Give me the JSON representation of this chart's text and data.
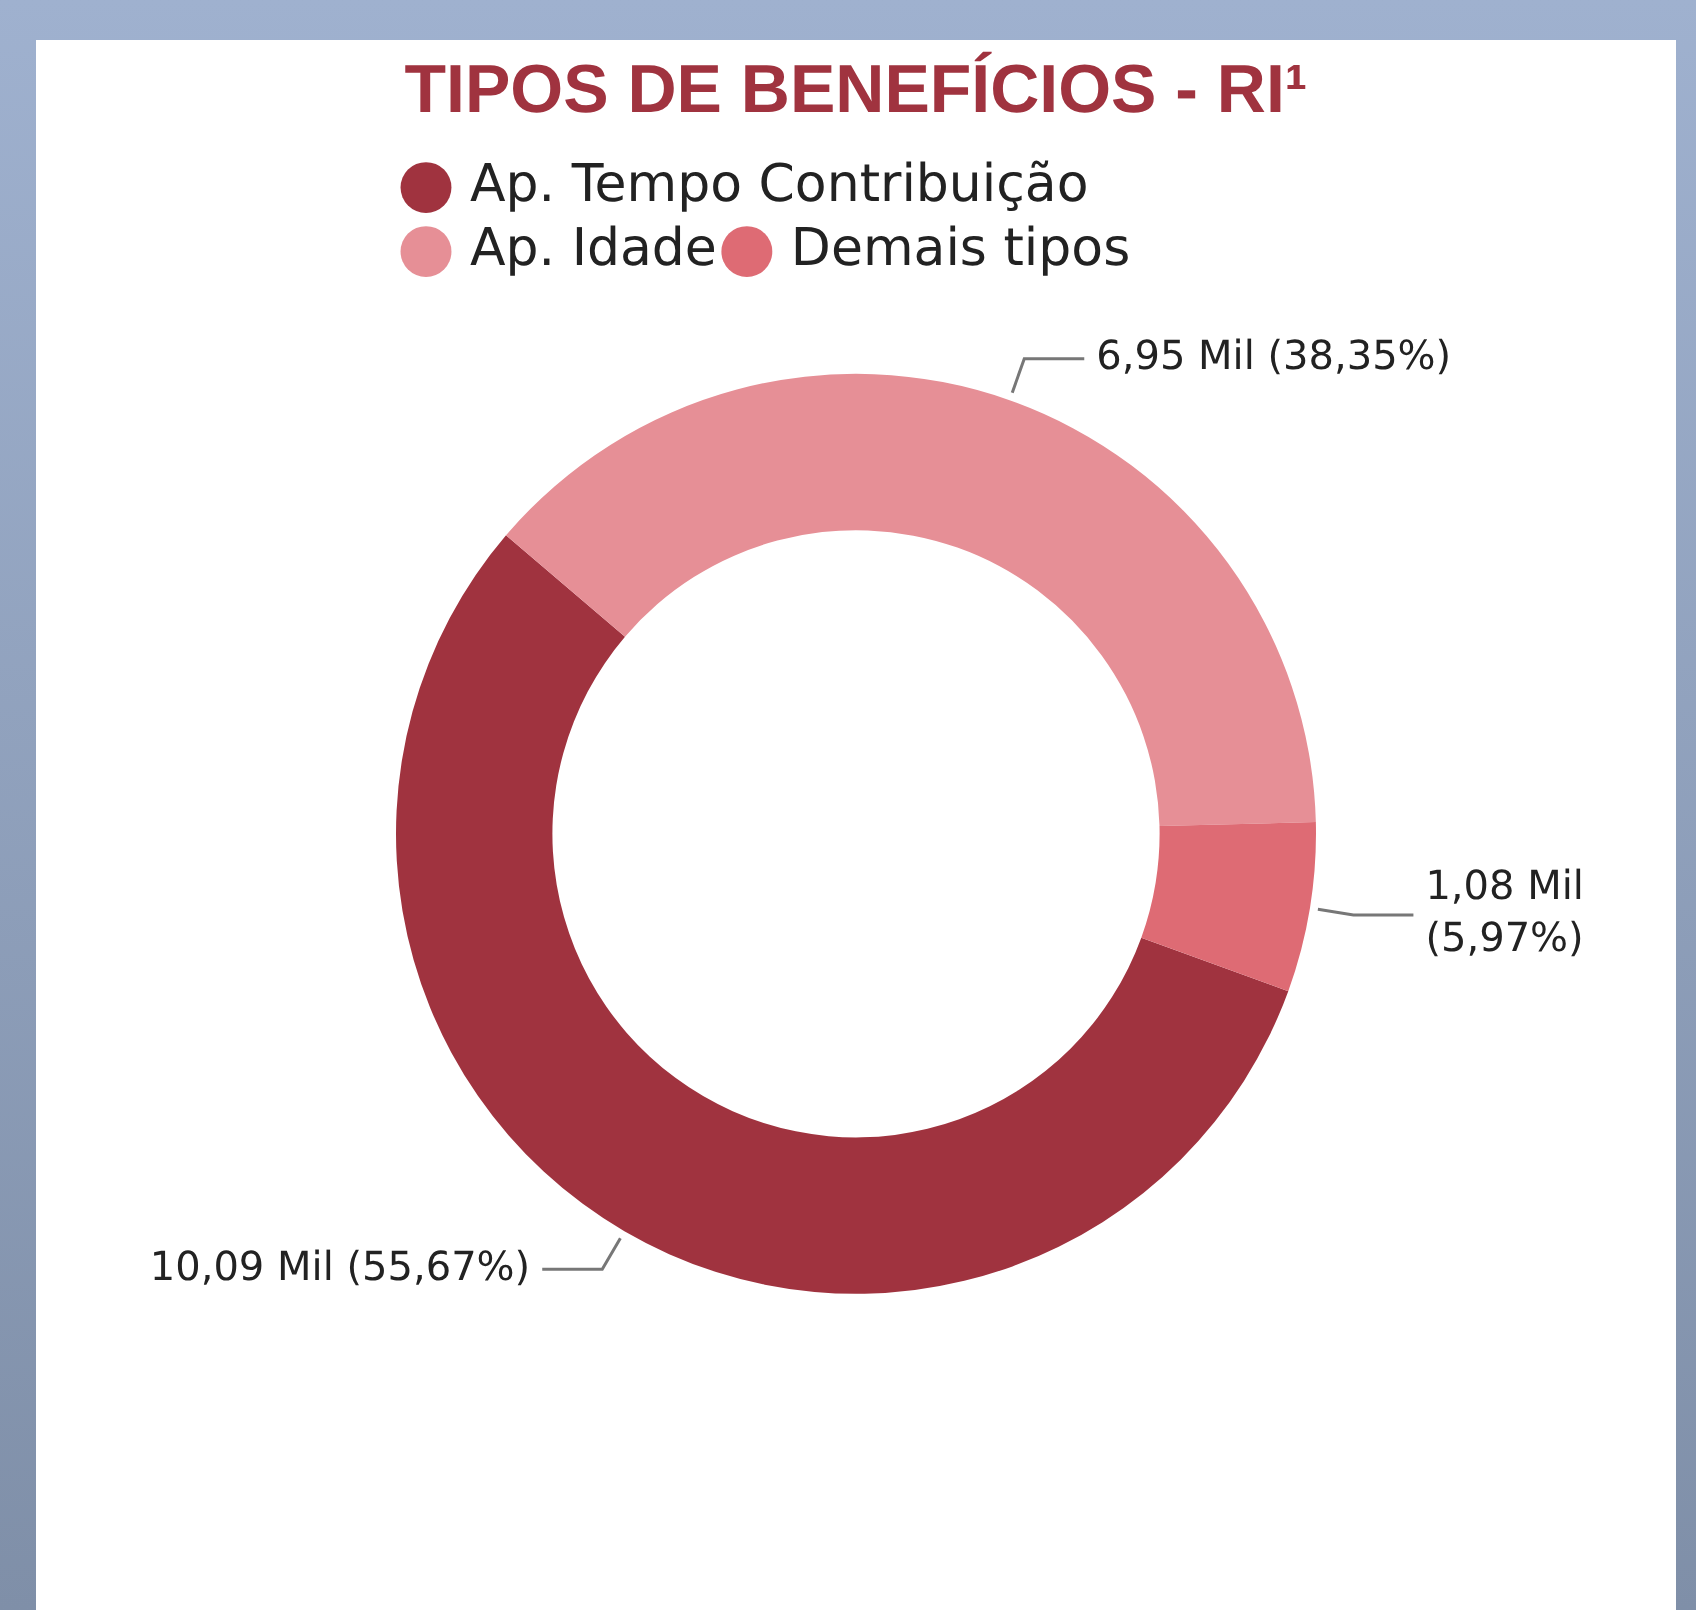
{
  "chart_data": {
    "type": "donut",
    "title": "TIPOS DE BENEFÍCIOS - RI¹",
    "categories": [
      "Ap. Tempo Contribuição",
      "Ap. Idade",
      "Demais tipos"
    ],
    "values": [
      10.09,
      6.95,
      1.08
    ],
    "colors": [
      "#a0333f",
      "#e68f96",
      "#de6b74"
    ],
    "value_labels": [
      "10,09 Mil (55,67%)",
      "6,95 Mil (38,35%)",
      "1,08 Mil (5,97%)"
    ],
    "legend": "top left"
  }
}
